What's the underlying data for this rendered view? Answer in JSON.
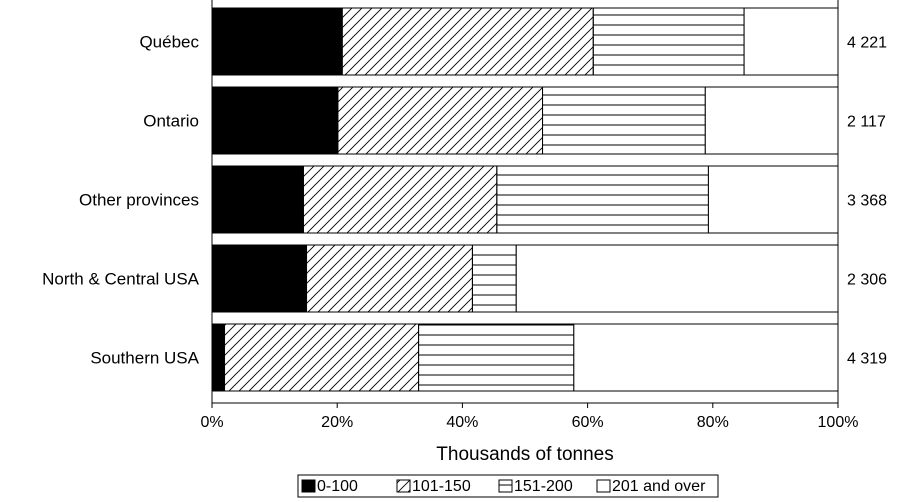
{
  "chart_data": {
    "type": "bar",
    "orientation": "horizontal",
    "stacked": "percent",
    "title": "",
    "xlabel": "Thousands of tonnes",
    "ylabel": "",
    "xlim": [
      0,
      100
    ],
    "x_ticks": [
      "0%",
      "20%",
      "40%",
      "60%",
      "80%",
      "100%"
    ],
    "categories": [
      "Québec",
      "Ontario",
      "Other provinces",
      "North & Central USA",
      "Southern USA"
    ],
    "totals": [
      "4 221",
      "2 117",
      "3 368",
      "2 306",
      "4 319"
    ],
    "series": [
      {
        "name": "0-100",
        "pattern": "solid",
        "values": [
          20.8,
          20.1,
          14.6,
          15.1,
          2.0
        ]
      },
      {
        "name": "101-150",
        "pattern": "diagonal",
        "values": [
          40.1,
          32.7,
          30.9,
          26.5,
          31.0
        ]
      },
      {
        "name": "151-200",
        "pattern": "horizontal",
        "values": [
          24.1,
          26.0,
          33.8,
          7.0,
          24.8
        ]
      },
      {
        "name": "201 and over",
        "pattern": "blank",
        "values": [
          15.0,
          21.2,
          20.7,
          51.4,
          42.2
        ]
      }
    ],
    "legend": "bottom",
    "grid": false
  }
}
